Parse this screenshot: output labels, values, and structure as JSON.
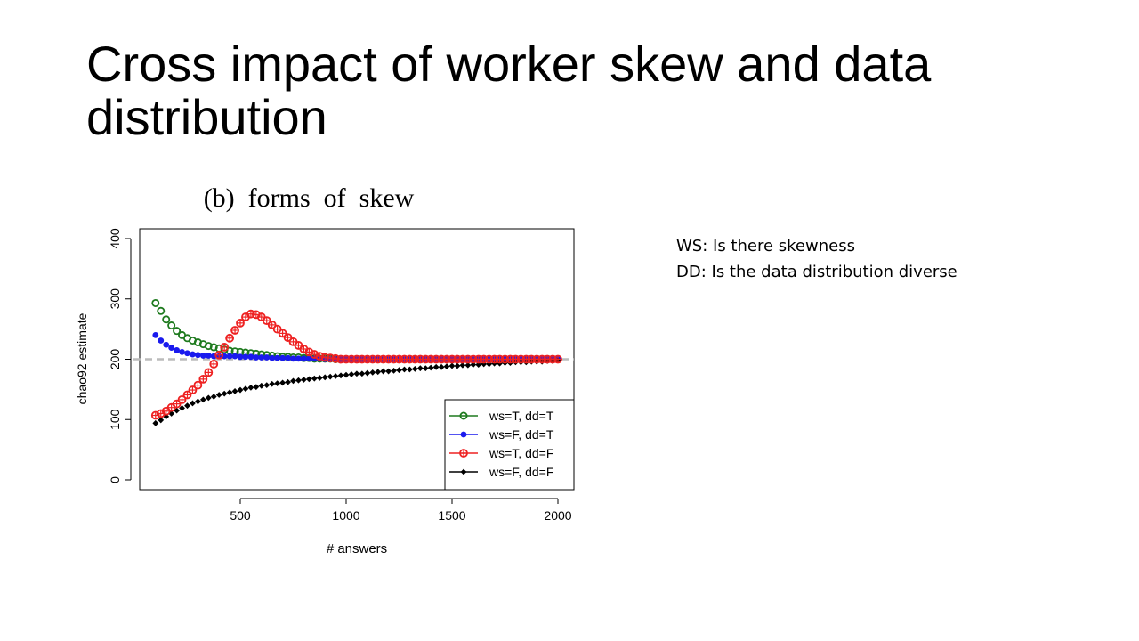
{
  "slide": {
    "title": "Cross impact of worker skew and data distribution",
    "notes": [
      "WS: Is there skewness",
      "DD: Is the data distribution diverse"
    ]
  },
  "chart_data": {
    "type": "line",
    "title": "(b)  forms  of  skew",
    "xlabel": "# answers",
    "ylabel": "chao92 estimate",
    "xlim": [
      100,
      2000
    ],
    "ylim": [
      0,
      400
    ],
    "xticks": [
      500,
      1000,
      1500,
      2000
    ],
    "yticks": [
      0,
      100,
      200,
      300,
      400
    ],
    "reference_line": {
      "y": 200,
      "style": "dashed",
      "color": "#bbbbbb"
    },
    "legend_position": "bottom-right",
    "x": [
      100,
      125,
      150,
      175,
      200,
      225,
      250,
      275,
      300,
      325,
      350,
      375,
      400,
      425,
      450,
      475,
      500,
      525,
      550,
      575,
      600,
      625,
      650,
      675,
      700,
      725,
      750,
      775,
      800,
      825,
      850,
      875,
      900,
      925,
      950,
      975,
      1000,
      1025,
      1050,
      1075,
      1100,
      1125,
      1150,
      1175,
      1200,
      1225,
      1250,
      1275,
      1300,
      1325,
      1350,
      1375,
      1400,
      1425,
      1450,
      1475,
      1500,
      1525,
      1550,
      1575,
      1600,
      1625,
      1650,
      1675,
      1700,
      1725,
      1750,
      1775,
      1800,
      1825,
      1850,
      1875,
      1900,
      1925,
      1950,
      1975,
      2000
    ],
    "series": [
      {
        "name": "ws=T, dd=T",
        "color": "#1e7a1e",
        "marker": "open-circle",
        "values": [
          293,
          280,
          266,
          256,
          247,
          240,
          235,
          231,
          228,
          225,
          222,
          220,
          218,
          216,
          214,
          213,
          212,
          211,
          210,
          209,
          208,
          207,
          206,
          205,
          204,
          204,
          203,
          203,
          202,
          202,
          201,
          201,
          201,
          201,
          200,
          200,
          200,
          200,
          200,
          200,
          200,
          200,
          200,
          200,
          200,
          200,
          200,
          200,
          200,
          200,
          200,
          200,
          200,
          200,
          200,
          200,
          200,
          200,
          200,
          200,
          200,
          200,
          200,
          200,
          200,
          200,
          200,
          200,
          200,
          200,
          200,
          200,
          200,
          200,
          200,
          200,
          200
        ]
      },
      {
        "name": "ws=F, dd=T",
        "color": "#1a1aee",
        "marker": "filled-circle",
        "values": [
          240,
          231,
          224,
          219,
          215,
          212,
          210,
          208,
          207,
          206,
          206,
          205,
          205,
          205,
          205,
          205,
          204,
          204,
          204,
          203,
          203,
          203,
          202,
          202,
          202,
          202,
          201,
          201,
          201,
          201,
          201,
          201,
          200,
          200,
          200,
          200,
          200,
          200,
          200,
          200,
          200,
          200,
          200,
          200,
          200,
          200,
          200,
          200,
          200,
          200,
          200,
          200,
          200,
          200,
          200,
          200,
          200,
          200,
          200,
          200,
          200,
          200,
          200,
          200,
          200,
          200,
          200,
          200,
          200,
          200,
          200,
          200,
          200,
          200,
          200,
          200,
          200
        ]
      },
      {
        "name": "ws=T, dd=F",
        "color": "#ee2222",
        "marker": "crossed-circle",
        "values": [
          107,
          110,
          114,
          120,
          126,
          133,
          141,
          149,
          157,
          167,
          178,
          192,
          207,
          220,
          235,
          248,
          260,
          270,
          275,
          274,
          270,
          264,
          257,
          250,
          243,
          236,
          229,
          223,
          217,
          212,
          208,
          205,
          203,
          202,
          201,
          200,
          200,
          200,
          200,
          200,
          200,
          200,
          200,
          200,
          200,
          200,
          200,
          200,
          200,
          200,
          200,
          200,
          200,
          200,
          200,
          200,
          200,
          200,
          200,
          200,
          200,
          200,
          200,
          200,
          200,
          200,
          200,
          200,
          200,
          200,
          200,
          200,
          200,
          200,
          200,
          200,
          200
        ]
      },
      {
        "name": "ws=F, dd=F",
        "color": "#000000",
        "marker": "filled-diamond",
        "values": [
          94,
          99,
          105,
          110,
          115,
          119,
          123,
          127,
          130,
          133,
          136,
          138,
          141,
          143,
          145,
          147,
          149,
          151,
          153,
          154,
          156,
          157,
          159,
          160,
          161,
          162,
          164,
          165,
          166,
          167,
          168,
          169,
          170,
          171,
          172,
          173,
          174,
          175,
          176,
          176,
          177,
          178,
          179,
          180,
          180,
          181,
          182,
          183,
          183,
          184,
          185,
          185,
          186,
          187,
          187,
          188,
          189,
          189,
          190,
          190,
          191,
          191,
          192,
          192,
          193,
          193,
          194,
          194,
          195,
          195,
          195,
          196,
          196,
          196,
          197,
          197,
          198
        ]
      }
    ]
  }
}
